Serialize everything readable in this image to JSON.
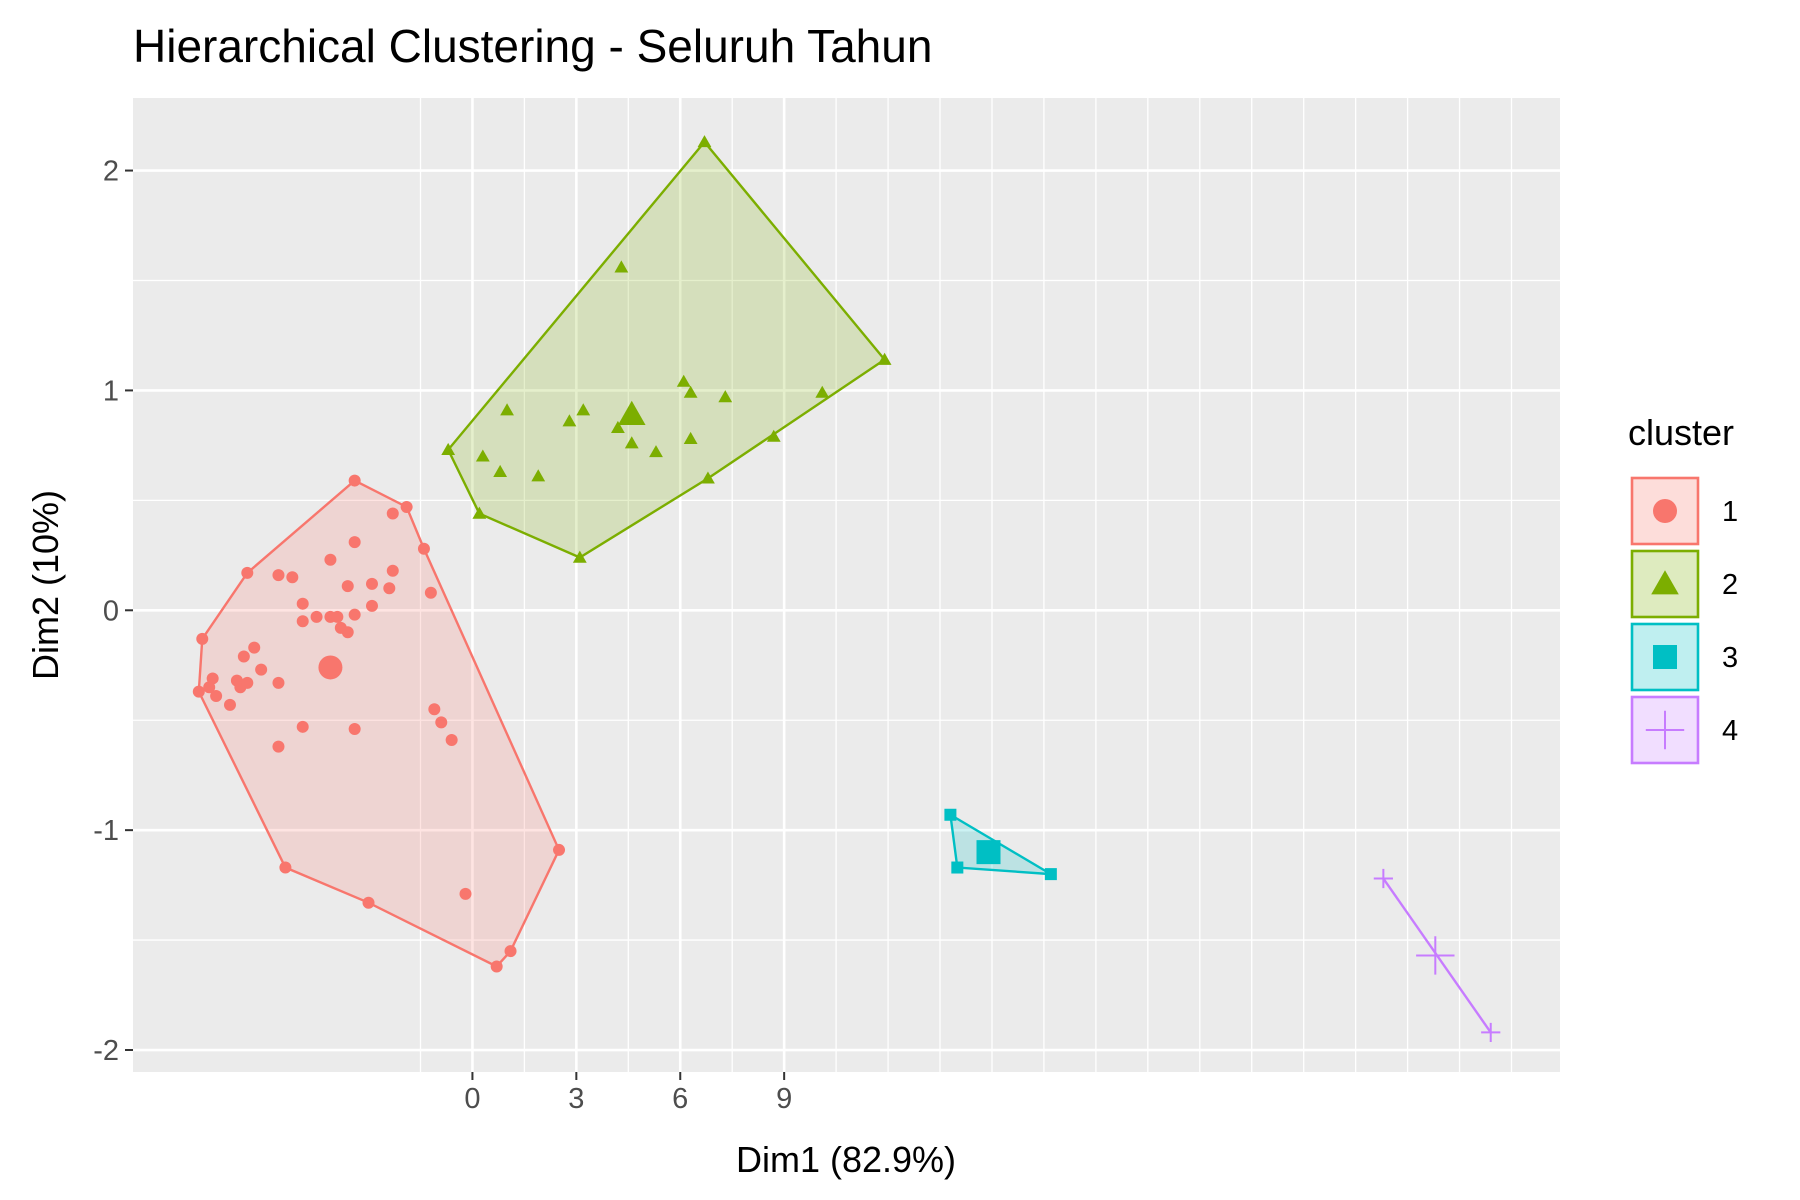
{
  "chart_data": {
    "type": "scatter",
    "title": "Hierarchical Clustering - Seluruh Tahun",
    "xlabel": "Dim1 (82.9%)",
    "ylabel": "Dim2 (10%)",
    "xlim": [
      -9.8,
      31.4
    ],
    "ylim": [
      -2.1,
      2.33
    ],
    "xticks": [
      0,
      3,
      6,
      9
    ],
    "yticks": [
      -2,
      -1,
      0,
      1,
      2
    ],
    "xtick_labels": [
      "0",
      "3",
      "6",
      "9"
    ],
    "ytick_labels": [
      "-2",
      "-1",
      "0",
      "1",
      "2"
    ],
    "grid": true,
    "legend": {
      "title": "cluster",
      "position": "right"
    },
    "series": [
      {
        "name": "1",
        "color": "#F8766D",
        "marker": "circle",
        "centroid": [
          -4.1,
          -0.26
        ],
        "hull": [
          [
            -7.9,
            -0.37
          ],
          [
            -7.8,
            -0.13
          ],
          [
            -6.5,
            0.17
          ],
          [
            -3.4,
            0.59
          ],
          [
            -1.9,
            0.47
          ],
          [
            -1.4,
            0.28
          ],
          [
            2.5,
            -1.09
          ],
          [
            1.1,
            -1.55
          ],
          [
            0.7,
            -1.62
          ],
          [
            -3.0,
            -1.33
          ],
          [
            -5.4,
            -1.17
          ]
        ],
        "points": [
          [
            -7.9,
            -0.37
          ],
          [
            -7.6,
            -0.35
          ],
          [
            -7.5,
            -0.31
          ],
          [
            -7.4,
            -0.39
          ],
          [
            -7.8,
            -0.13
          ],
          [
            -7.0,
            -0.43
          ],
          [
            -6.8,
            -0.32
          ],
          [
            -6.7,
            -0.35
          ],
          [
            -6.5,
            -0.33
          ],
          [
            -6.6,
            -0.21
          ],
          [
            -6.3,
            -0.17
          ],
          [
            -6.1,
            -0.27
          ],
          [
            -5.6,
            -0.33
          ],
          [
            -5.6,
            -0.62
          ],
          [
            -6.5,
            0.17
          ],
          [
            -5.6,
            0.16
          ],
          [
            -5.2,
            0.15
          ],
          [
            -4.9,
            0.03
          ],
          [
            -4.9,
            -0.05
          ],
          [
            -4.5,
            -0.03
          ],
          [
            -4.1,
            -0.03
          ],
          [
            -3.9,
            -0.03
          ],
          [
            -3.8,
            -0.08
          ],
          [
            -3.6,
            -0.1
          ],
          [
            -3.4,
            -0.02
          ],
          [
            -3.4,
            0.31
          ],
          [
            -4.1,
            0.23
          ],
          [
            -3.6,
            0.11
          ],
          [
            -2.9,
            0.12
          ],
          [
            -2.9,
            0.02
          ],
          [
            -2.4,
            0.1
          ],
          [
            -2.3,
            0.18
          ],
          [
            -1.2,
            0.08
          ],
          [
            -2.3,
            0.44
          ],
          [
            -1.9,
            0.47
          ],
          [
            -1.4,
            0.28
          ],
          [
            -4.9,
            -0.53
          ],
          [
            -3.4,
            -0.54
          ],
          [
            -1.1,
            -0.45
          ],
          [
            -0.9,
            -0.51
          ],
          [
            -0.6,
            -0.59
          ],
          [
            -3.4,
            0.59
          ],
          [
            -5.4,
            -1.17
          ],
          [
            -3.0,
            -1.33
          ],
          [
            -0.2,
            -1.29
          ],
          [
            2.5,
            -1.09
          ],
          [
            1.1,
            -1.55
          ],
          [
            0.7,
            -1.62
          ]
        ]
      },
      {
        "name": "2",
        "color": "#7CAE00",
        "marker": "triangle",
        "centroid": [
          4.6,
          0.89
        ],
        "hull": [
          [
            -0.7,
            0.73
          ],
          [
            0.2,
            0.44
          ],
          [
            3.1,
            0.24
          ],
          [
            6.8,
            0.6
          ],
          [
            11.9,
            1.14
          ],
          [
            6.7,
            2.13
          ]
        ],
        "points": [
          [
            -0.7,
            0.73
          ],
          [
            0.3,
            0.7
          ],
          [
            0.8,
            0.63
          ],
          [
            1.0,
            0.91
          ],
          [
            1.9,
            0.61
          ],
          [
            2.8,
            0.86
          ],
          [
            3.2,
            0.91
          ],
          [
            4.2,
            0.83
          ],
          [
            4.3,
            1.56
          ],
          [
            4.6,
            0.76
          ],
          [
            5.3,
            0.72
          ],
          [
            6.1,
            1.04
          ],
          [
            6.3,
            0.99
          ],
          [
            6.3,
            0.78
          ],
          [
            7.3,
            0.97
          ],
          [
            8.7,
            0.79
          ],
          [
            10.1,
            0.99
          ],
          [
            11.9,
            1.14
          ],
          [
            6.7,
            2.13
          ],
          [
            0.2,
            0.44
          ],
          [
            3.1,
            0.24
          ],
          [
            6.8,
            0.6
          ]
        ]
      },
      {
        "name": "3",
        "color": "#00BFC4",
        "marker": "square",
        "centroid": [
          14.9,
          -1.1
        ],
        "hull": [
          [
            13.8,
            -0.93
          ],
          [
            14.0,
            -1.17
          ],
          [
            16.7,
            -1.2
          ]
        ],
        "points": [
          [
            13.8,
            -0.93
          ],
          [
            14.0,
            -1.17
          ],
          [
            16.7,
            -1.2
          ]
        ]
      },
      {
        "name": "4",
        "color": "#C77CFF",
        "marker": "cross",
        "centroid": [
          27.8,
          -1.57
        ],
        "hull": [
          [
            26.3,
            -1.22
          ],
          [
            29.4,
            -1.92
          ]
        ],
        "points": [
          [
            26.3,
            -1.22
          ],
          [
            29.4,
            -1.92
          ]
        ]
      }
    ]
  }
}
